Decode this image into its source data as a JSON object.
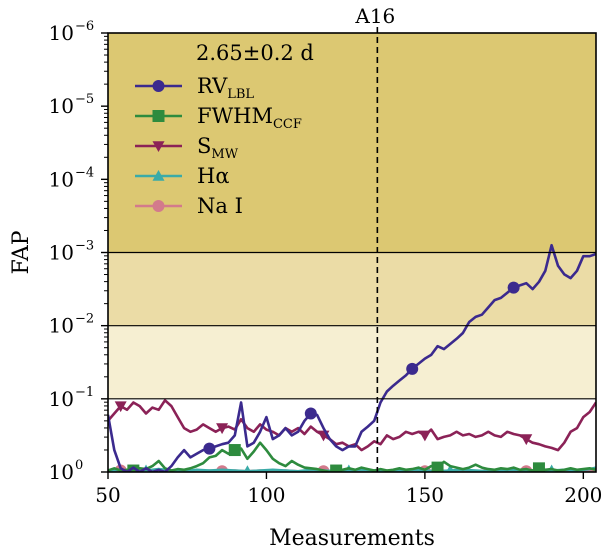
{
  "chart_data": {
    "type": "line",
    "title": "",
    "xlabel": "Measurements",
    "ylabel": "FAP",
    "xlim": [
      50,
      204
    ],
    "ylim_log10": [
      0,
      -6
    ],
    "x_ticks": [
      50,
      100,
      150,
      200
    ],
    "x_tick_labels": [
      "50",
      "100",
      "150",
      "200"
    ],
    "y_ticks_log10": [
      -6,
      -5,
      -4,
      -3,
      -2,
      -1,
      0
    ],
    "y_tick_labels": [
      {
        "base": "10",
        "exp": "−6"
      },
      {
        "base": "10",
        "exp": "−5"
      },
      {
        "base": "10",
        "exp": "−4"
      },
      {
        "base": "10",
        "exp": "−3"
      },
      {
        "base": "10",
        "exp": "−2"
      },
      {
        "base": "10",
        "exp": "−1"
      },
      {
        "base": "10",
        "exp": "0"
      }
    ],
    "bands": [
      {
        "from": -6,
        "to": -3,
        "color": "#dcc872"
      },
      {
        "from": -3,
        "to": -2,
        "color": "#ebdca6"
      },
      {
        "from": -2,
        "to": -1,
        "color": "#f6efd2"
      }
    ],
    "threshold_lines_log10": [
      -3,
      -2,
      -1
    ],
    "vline": {
      "x": 135,
      "label": "A16"
    },
    "legend": {
      "title": "2.65±0.2 d",
      "placement": "top-left",
      "entries": [
        {
          "text": "RV",
          "sub": "LBL",
          "series": "rv"
        },
        {
          "text": "FWHM",
          "sub": "CCF",
          "series": "fwhm"
        },
        {
          "text": "S",
          "sub": "MW",
          "series": "smw"
        },
        {
          "text": "Hα",
          "sub": "",
          "series": "ha"
        },
        {
          "text": "Na I",
          "sub": "",
          "series": "nai"
        }
      ]
    },
    "series": [
      {
        "id": "rv",
        "name": "RV_LBL",
        "color": "#3b2a8e",
        "marker": "circle",
        "marker_every": 16,
        "marker_offset": 0,
        "x": [
          50,
          52,
          54,
          56,
          58,
          60,
          62,
          64,
          66,
          68,
          70,
          72,
          74,
          76,
          78,
          80,
          82,
          84,
          86,
          88,
          90,
          92,
          94,
          96,
          98,
          100,
          102,
          104,
          106,
          108,
          110,
          112,
          114,
          116,
          118,
          120,
          122,
          124,
          126,
          128,
          130,
          132,
          134,
          136,
          138,
          140,
          142,
          144,
          146,
          148,
          150,
          152,
          154,
          156,
          158,
          160,
          162,
          164,
          166,
          168,
          170,
          172,
          174,
          176,
          178,
          180,
          182,
          184,
          186,
          188,
          190,
          192,
          194,
          196,
          198,
          200,
          202,
          204
        ],
        "y": [
          -0.78,
          -0.3,
          -0.05,
          0,
          -0.06,
          0,
          -0.05,
          0,
          -0.03,
          0,
          -0.08,
          -0.2,
          -0.3,
          -0.2,
          -0.25,
          -0.3,
          -0.32,
          -0.35,
          -0.38,
          -0.4,
          -0.5,
          -0.95,
          -0.35,
          -0.4,
          -0.55,
          -0.75,
          -0.45,
          -0.5,
          -0.6,
          -0.5,
          -0.55,
          -0.7,
          -0.8,
          -0.78,
          -0.6,
          -0.45,
          -0.35,
          -0.3,
          -0.35,
          -0.35,
          -0.55,
          -0.62,
          -0.7,
          -0.95,
          -1.1,
          -1.18,
          -1.25,
          -1.32,
          -1.41,
          -1.48,
          -1.55,
          -1.6,
          -1.72,
          -1.68,
          -1.75,
          -1.82,
          -1.9,
          -2.05,
          -2.12,
          -2.15,
          -2.25,
          -2.35,
          -2.38,
          -2.45,
          -2.52,
          -2.55,
          -2.58,
          -2.5,
          -2.6,
          -2.75,
          -3.1,
          -2.82,
          -2.7,
          -2.65,
          -2.75,
          -2.95,
          -2.95,
          -2.98
        ]
      },
      {
        "id": "fwhm",
        "name": "FWHM_CCF",
        "color": "#2e8b3e",
        "marker": "square",
        "marker_every": 16,
        "marker_offset": 8,
        "x": [
          50,
          52,
          54,
          56,
          58,
          60,
          62,
          64,
          66,
          68,
          70,
          72,
          74,
          76,
          78,
          80,
          82,
          84,
          86,
          88,
          90,
          92,
          94,
          96,
          98,
          100,
          102,
          104,
          106,
          108,
          110,
          112,
          114,
          116,
          118,
          120,
          122,
          124,
          126,
          128,
          130,
          132,
          134,
          136,
          138,
          140,
          142,
          144,
          146,
          148,
          150,
          152,
          154,
          156,
          158,
          160,
          162,
          164,
          166,
          168,
          170,
          172,
          174,
          176,
          178,
          180,
          182,
          184,
          186,
          188,
          190,
          192,
          194,
          196,
          198,
          200,
          202,
          204
        ],
        "y": [
          -0.02,
          -0.05,
          -0.02,
          -0.03,
          -0.02,
          -0.05,
          -0.04,
          -0.08,
          -0.15,
          -0.05,
          -0.02,
          -0.04,
          -0.03,
          -0.05,
          -0.08,
          -0.12,
          -0.2,
          -0.22,
          -0.3,
          -0.25,
          -0.3,
          -0.32,
          -0.18,
          -0.28,
          -0.4,
          -0.3,
          -0.18,
          -0.12,
          -0.08,
          -0.15,
          -0.1,
          -0.06,
          -0.05,
          -0.04,
          -0.02,
          0,
          -0.02,
          -0.03,
          -0.05,
          -0.03,
          -0.06,
          -0.04,
          -0.02,
          -0.04,
          -0.02,
          -0.03,
          -0.05,
          -0.03,
          -0.04,
          -0.06,
          -0.03,
          -0.08,
          -0.06,
          -0.14,
          -0.08,
          -0.06,
          -0.04,
          -0.06,
          -0.1,
          -0.06,
          -0.04,
          -0.03,
          -0.05,
          -0.04,
          -0.06,
          -0.03,
          -0.04,
          -0.02,
          -0.05,
          -0.03,
          -0.04,
          -0.02,
          -0.03,
          -0.05,
          -0.03,
          -0.04,
          -0.05,
          -0.03
        ]
      },
      {
        "id": "smw",
        "name": "S_MW",
        "color": "#8b2257",
        "marker": "triangle-down",
        "marker_every": 16,
        "marker_offset": 4,
        "x": [
          50,
          52,
          54,
          56,
          58,
          60,
          62,
          64,
          66,
          68,
          70,
          72,
          74,
          76,
          78,
          80,
          82,
          84,
          86,
          88,
          90,
          92,
          94,
          96,
          98,
          100,
          102,
          104,
          106,
          108,
          110,
          112,
          114,
          116,
          118,
          120,
          122,
          124,
          126,
          128,
          130,
          132,
          134,
          136,
          138,
          140,
          142,
          144,
          146,
          148,
          150,
          152,
          154,
          156,
          158,
          160,
          162,
          164,
          166,
          168,
          170,
          172,
          174,
          176,
          178,
          180,
          182,
          184,
          186,
          188,
          190,
          192,
          194,
          196,
          198,
          200,
          202,
          204
        ],
        "y": [
          -0.7,
          -0.8,
          -0.9,
          -0.85,
          -0.95,
          -0.9,
          -0.8,
          -0.88,
          -0.85,
          -0.98,
          -0.9,
          -0.75,
          -0.6,
          -0.55,
          -0.58,
          -0.65,
          -0.6,
          -0.55,
          -0.6,
          -0.62,
          -0.58,
          -0.72,
          -0.6,
          -0.55,
          -0.65,
          -0.58,
          -0.55,
          -0.5,
          -0.6,
          -0.55,
          -0.6,
          -0.52,
          -0.62,
          -0.55,
          -0.5,
          -0.45,
          -0.38,
          -0.4,
          -0.35,
          -0.38,
          -0.3,
          -0.35,
          -0.42,
          -0.38,
          -0.5,
          -0.45,
          -0.48,
          -0.55,
          -0.52,
          -0.55,
          -0.5,
          -0.58,
          -0.45,
          -0.48,
          -0.5,
          -0.55,
          -0.5,
          -0.52,
          -0.48,
          -0.5,
          -0.55,
          -0.5,
          -0.48,
          -0.55,
          -0.52,
          -0.5,
          -0.45,
          -0.4,
          -0.38,
          -0.35,
          -0.33,
          -0.3,
          -0.4,
          -0.55,
          -0.6,
          -0.75,
          -0.82,
          -0.95
        ]
      },
      {
        "id": "ha",
        "name": "Hα",
        "color": "#3aaba8",
        "marker": "triangle-up",
        "marker_every": 16,
        "marker_offset": 12,
        "x": [
          50,
          54,
          58,
          62,
          66,
          70,
          74,
          78,
          82,
          86,
          90,
          94,
          98,
          102,
          106,
          110,
          114,
          118,
          122,
          126,
          130,
          134,
          138,
          142,
          146,
          150,
          154,
          158,
          162,
          166,
          170,
          174,
          178,
          182,
          186,
          190,
          194,
          198,
          202,
          204
        ],
        "y": [
          -0.02,
          -0.03,
          -0.01,
          -0.02,
          -0.04,
          -0.02,
          -0.01,
          -0.03,
          -0.02,
          -0.03,
          -0.02,
          -0.01,
          -0.02,
          -0.03,
          -0.02,
          -0.01,
          -0.03,
          -0.02,
          -0.01,
          -0.02,
          -0.03,
          -0.02,
          -0.01,
          -0.02,
          -0.03,
          -0.02,
          -0.01,
          -0.02,
          -0.03,
          -0.02,
          -0.01,
          -0.02,
          -0.03,
          -0.02,
          -0.01,
          -0.02,
          -0.03,
          -0.02,
          -0.04,
          -0.06
        ]
      },
      {
        "id": "nai",
        "name": "Na I",
        "color": "#d37a8c",
        "marker": "circle",
        "marker_every": 16,
        "marker_offset": 4,
        "x": [
          50,
          54,
          58,
          62,
          66,
          70,
          74,
          78,
          82,
          86,
          90,
          94,
          98,
          102,
          106,
          110,
          114,
          118,
          122,
          126,
          130,
          134,
          138,
          142,
          146,
          150,
          154,
          158,
          162,
          166,
          170,
          174,
          178,
          182,
          186,
          190,
          194,
          198,
          202,
          204
        ],
        "y": [
          -0.01,
          -0.02,
          -0.01,
          -0.02,
          -0.03,
          -0.01,
          -0.02,
          -0.01,
          -0.02,
          -0.01,
          -0.02,
          -0.01,
          -0.02,
          -0.01,
          -0.02,
          -0.01,
          -0.02,
          -0.01,
          -0.02,
          -0.01,
          -0.02,
          -0.01,
          -0.02,
          -0.01,
          -0.02,
          -0.01,
          -0.02,
          -0.01,
          -0.02,
          -0.01,
          -0.02,
          -0.01,
          -0.02,
          -0.01,
          -0.02,
          -0.01,
          -0.02,
          -0.01,
          -0.02,
          -0.01
        ]
      }
    ]
  }
}
